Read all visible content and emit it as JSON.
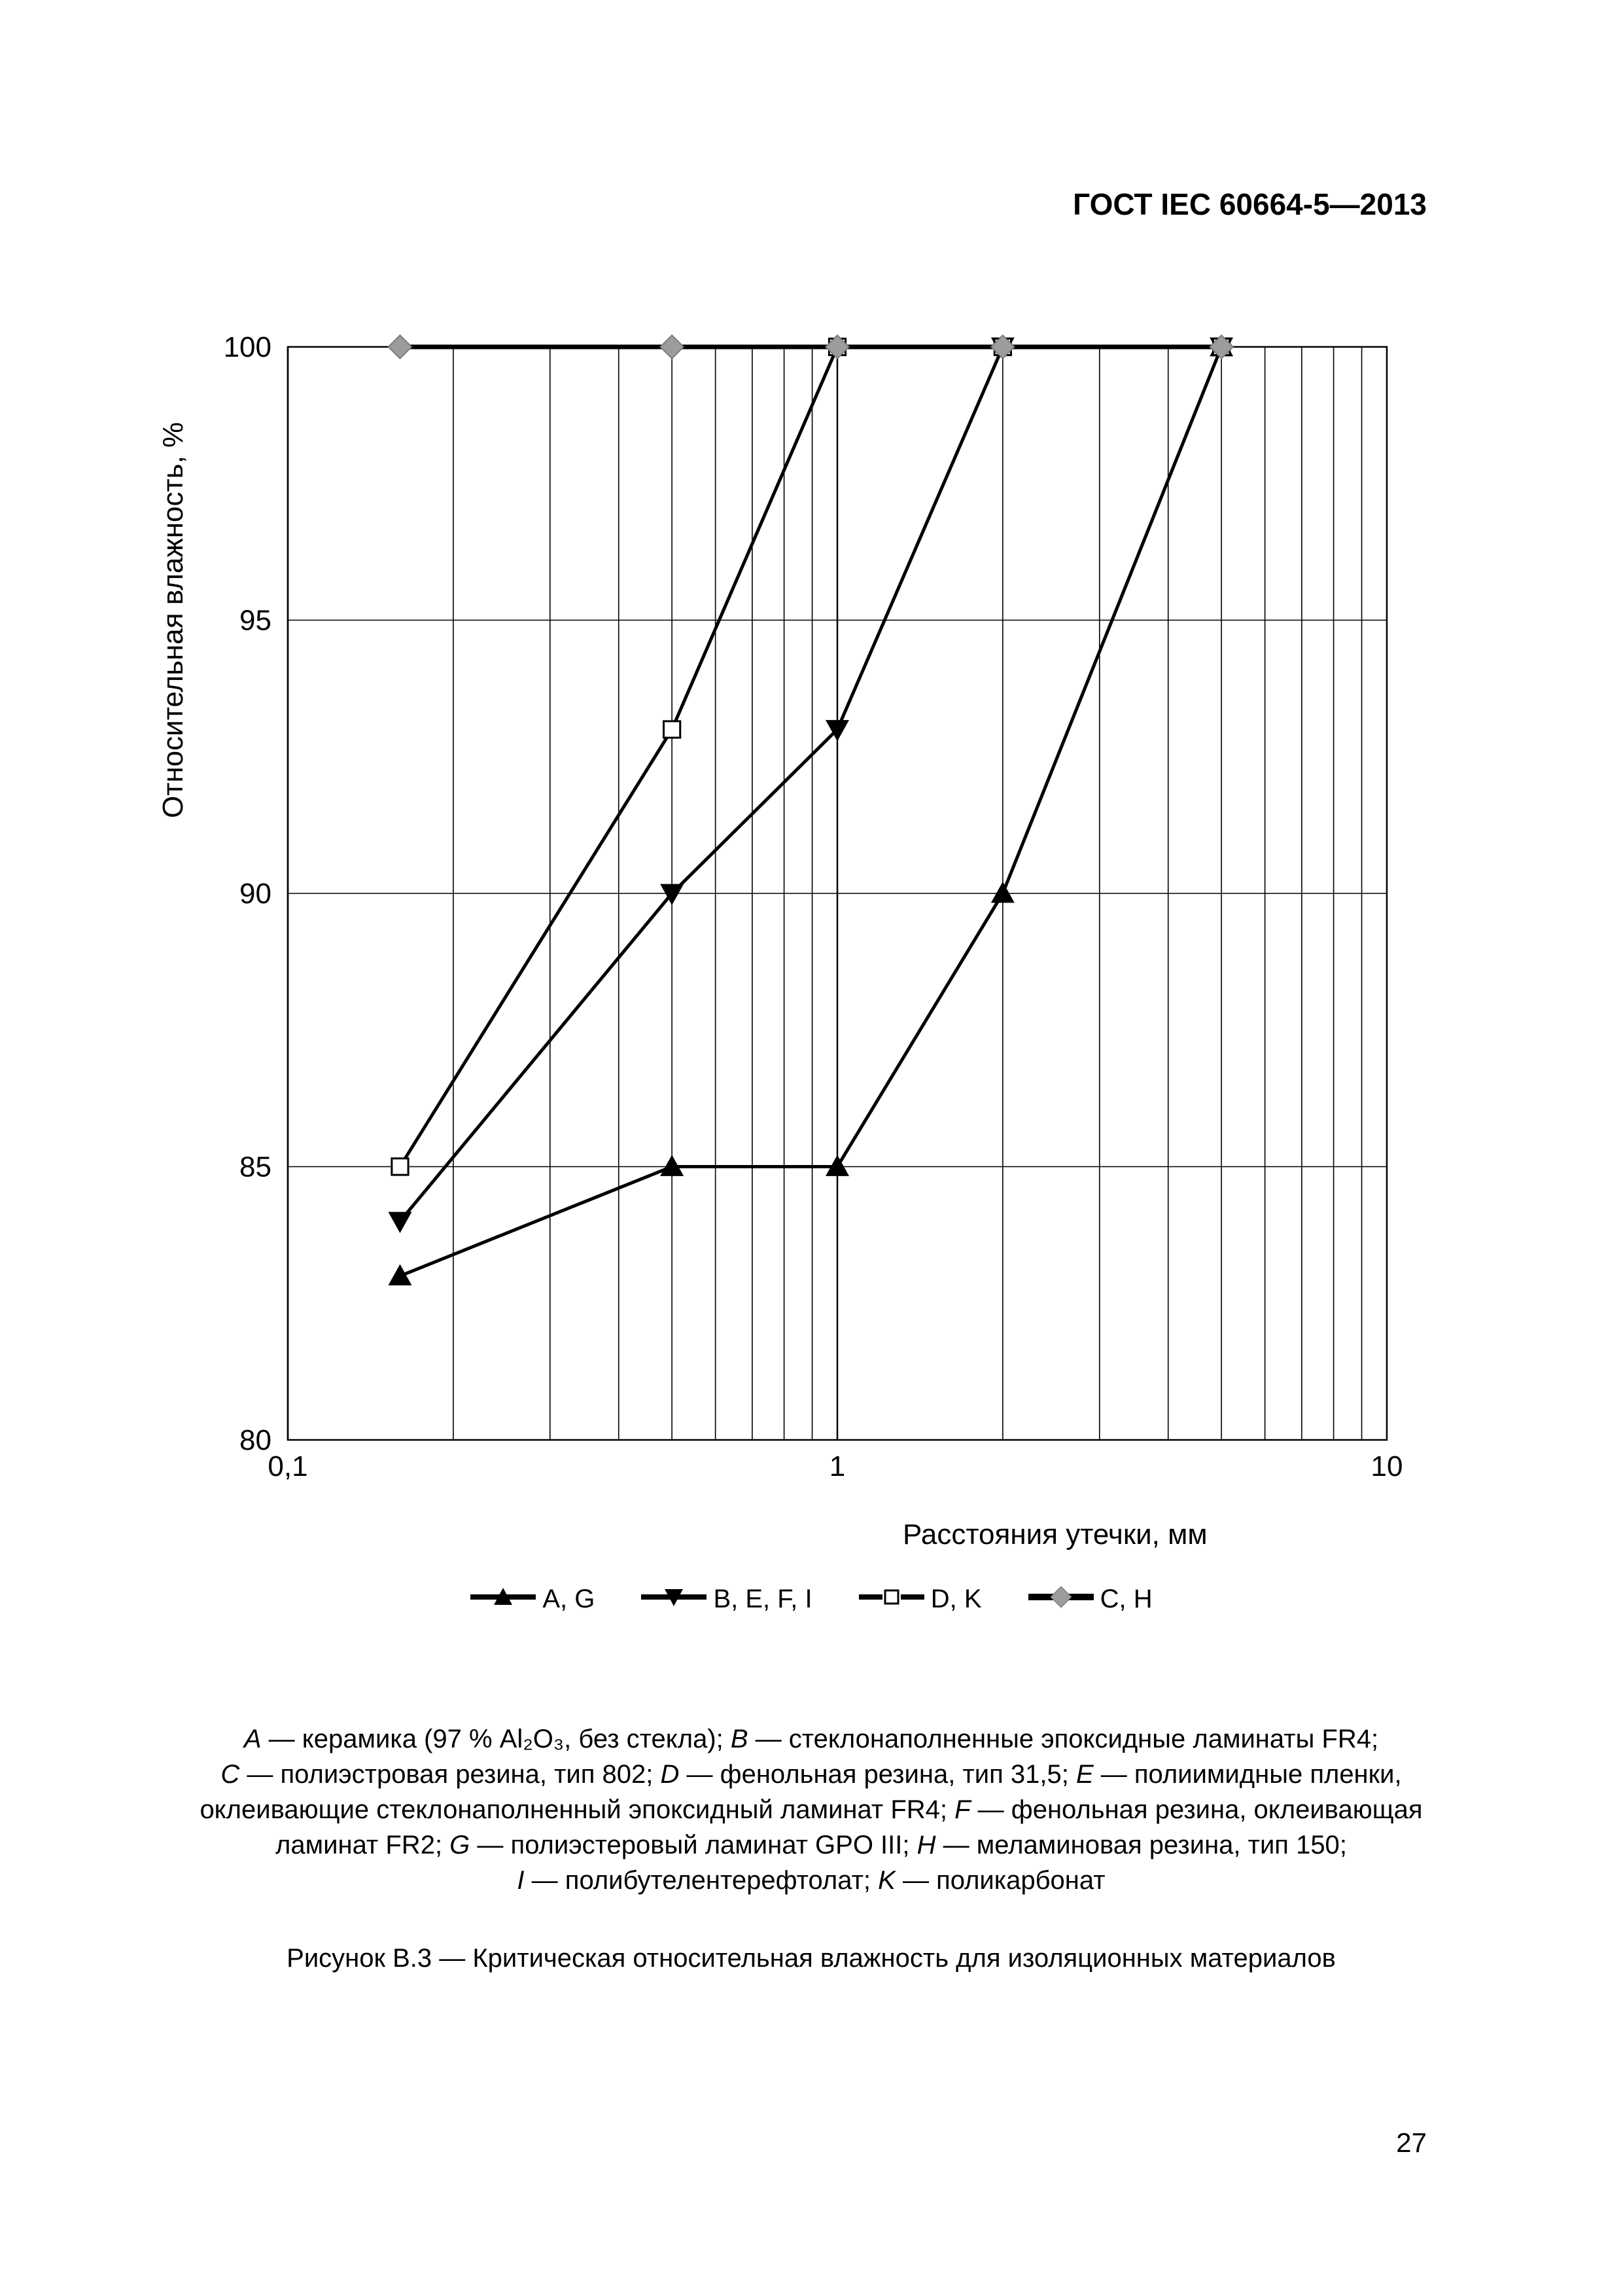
{
  "document": {
    "header": "ГОСТ IEC 60664-5—2013",
    "page_number": "27"
  },
  "chart": {
    "type": "line",
    "x_scale": "log",
    "xlim": [
      0.1,
      10
    ],
    "ylim": [
      80,
      100
    ],
    "ytick_step": 5,
    "xtick_labels": [
      "0,1",
      "1",
      "10"
    ],
    "ytick_labels": [
      "80",
      "85",
      "90",
      "95",
      "100"
    ],
    "xlabel": "Расстояния утечки, мм",
    "ylabel": "Относительная влажность, %",
    "background_color": "#ffffff",
    "grid_color": "#000000",
    "axis_line_width": 2.5,
    "grid_line_width": 1.6,
    "series": [
      {
        "id": "AG",
        "label": "A, G",
        "marker": "triangle-up-filled",
        "color": "#000000",
        "line_width": 5,
        "x": [
          0.16,
          0.5,
          1.0,
          2.0,
          5.0
        ],
        "y": [
          83,
          85,
          85,
          90,
          100
        ]
      },
      {
        "id": "BEFI",
        "label": "B, E, F, I",
        "marker": "triangle-down-filled",
        "color": "#000000",
        "line_width": 5,
        "x": [
          0.16,
          0.5,
          1.0,
          2.0,
          5.0
        ],
        "y": [
          84,
          90,
          93,
          100,
          100
        ]
      },
      {
        "id": "DK",
        "label": "D, K",
        "marker": "square-open",
        "color": "#000000",
        "line_width": 5,
        "x": [
          0.16,
          0.5,
          1.0,
          2.0,
          5.0
        ],
        "y": [
          85,
          93,
          100,
          100,
          100
        ]
      },
      {
        "id": "CH",
        "label": "C, H",
        "marker": "diamond-filled-grey",
        "color": "#000000",
        "marker_color": "#9c9c9c",
        "line_width": 7,
        "x": [
          0.16,
          0.5,
          1.0,
          2.0,
          5.0
        ],
        "y": [
          100,
          100,
          100,
          100,
          100
        ]
      }
    ]
  },
  "materials_caption": {
    "A": "керамика (97 % Al₂O₃, без стекла)",
    "B": "стеклонаполненные эпоксидные ламинаты FR4",
    "C": "полиэстровая резина, тип 802",
    "D": "фенольная резина, тип 31,5",
    "E": "полиимидные пленки, оклеивающие стеклонаполненный эпоксидный ламинат FR4",
    "F": "фенольная резина, оклеивающая ламинат FR2",
    "G": "полиэстеровый ламинат GPO III",
    "H": "меламиновая резина, тип 150",
    "I": "полибутелентерефтолат",
    "K": "поликарбонат"
  },
  "figure_caption": "Рисунок B.3 — Критическая относительная влажность для изоляционных материалов"
}
